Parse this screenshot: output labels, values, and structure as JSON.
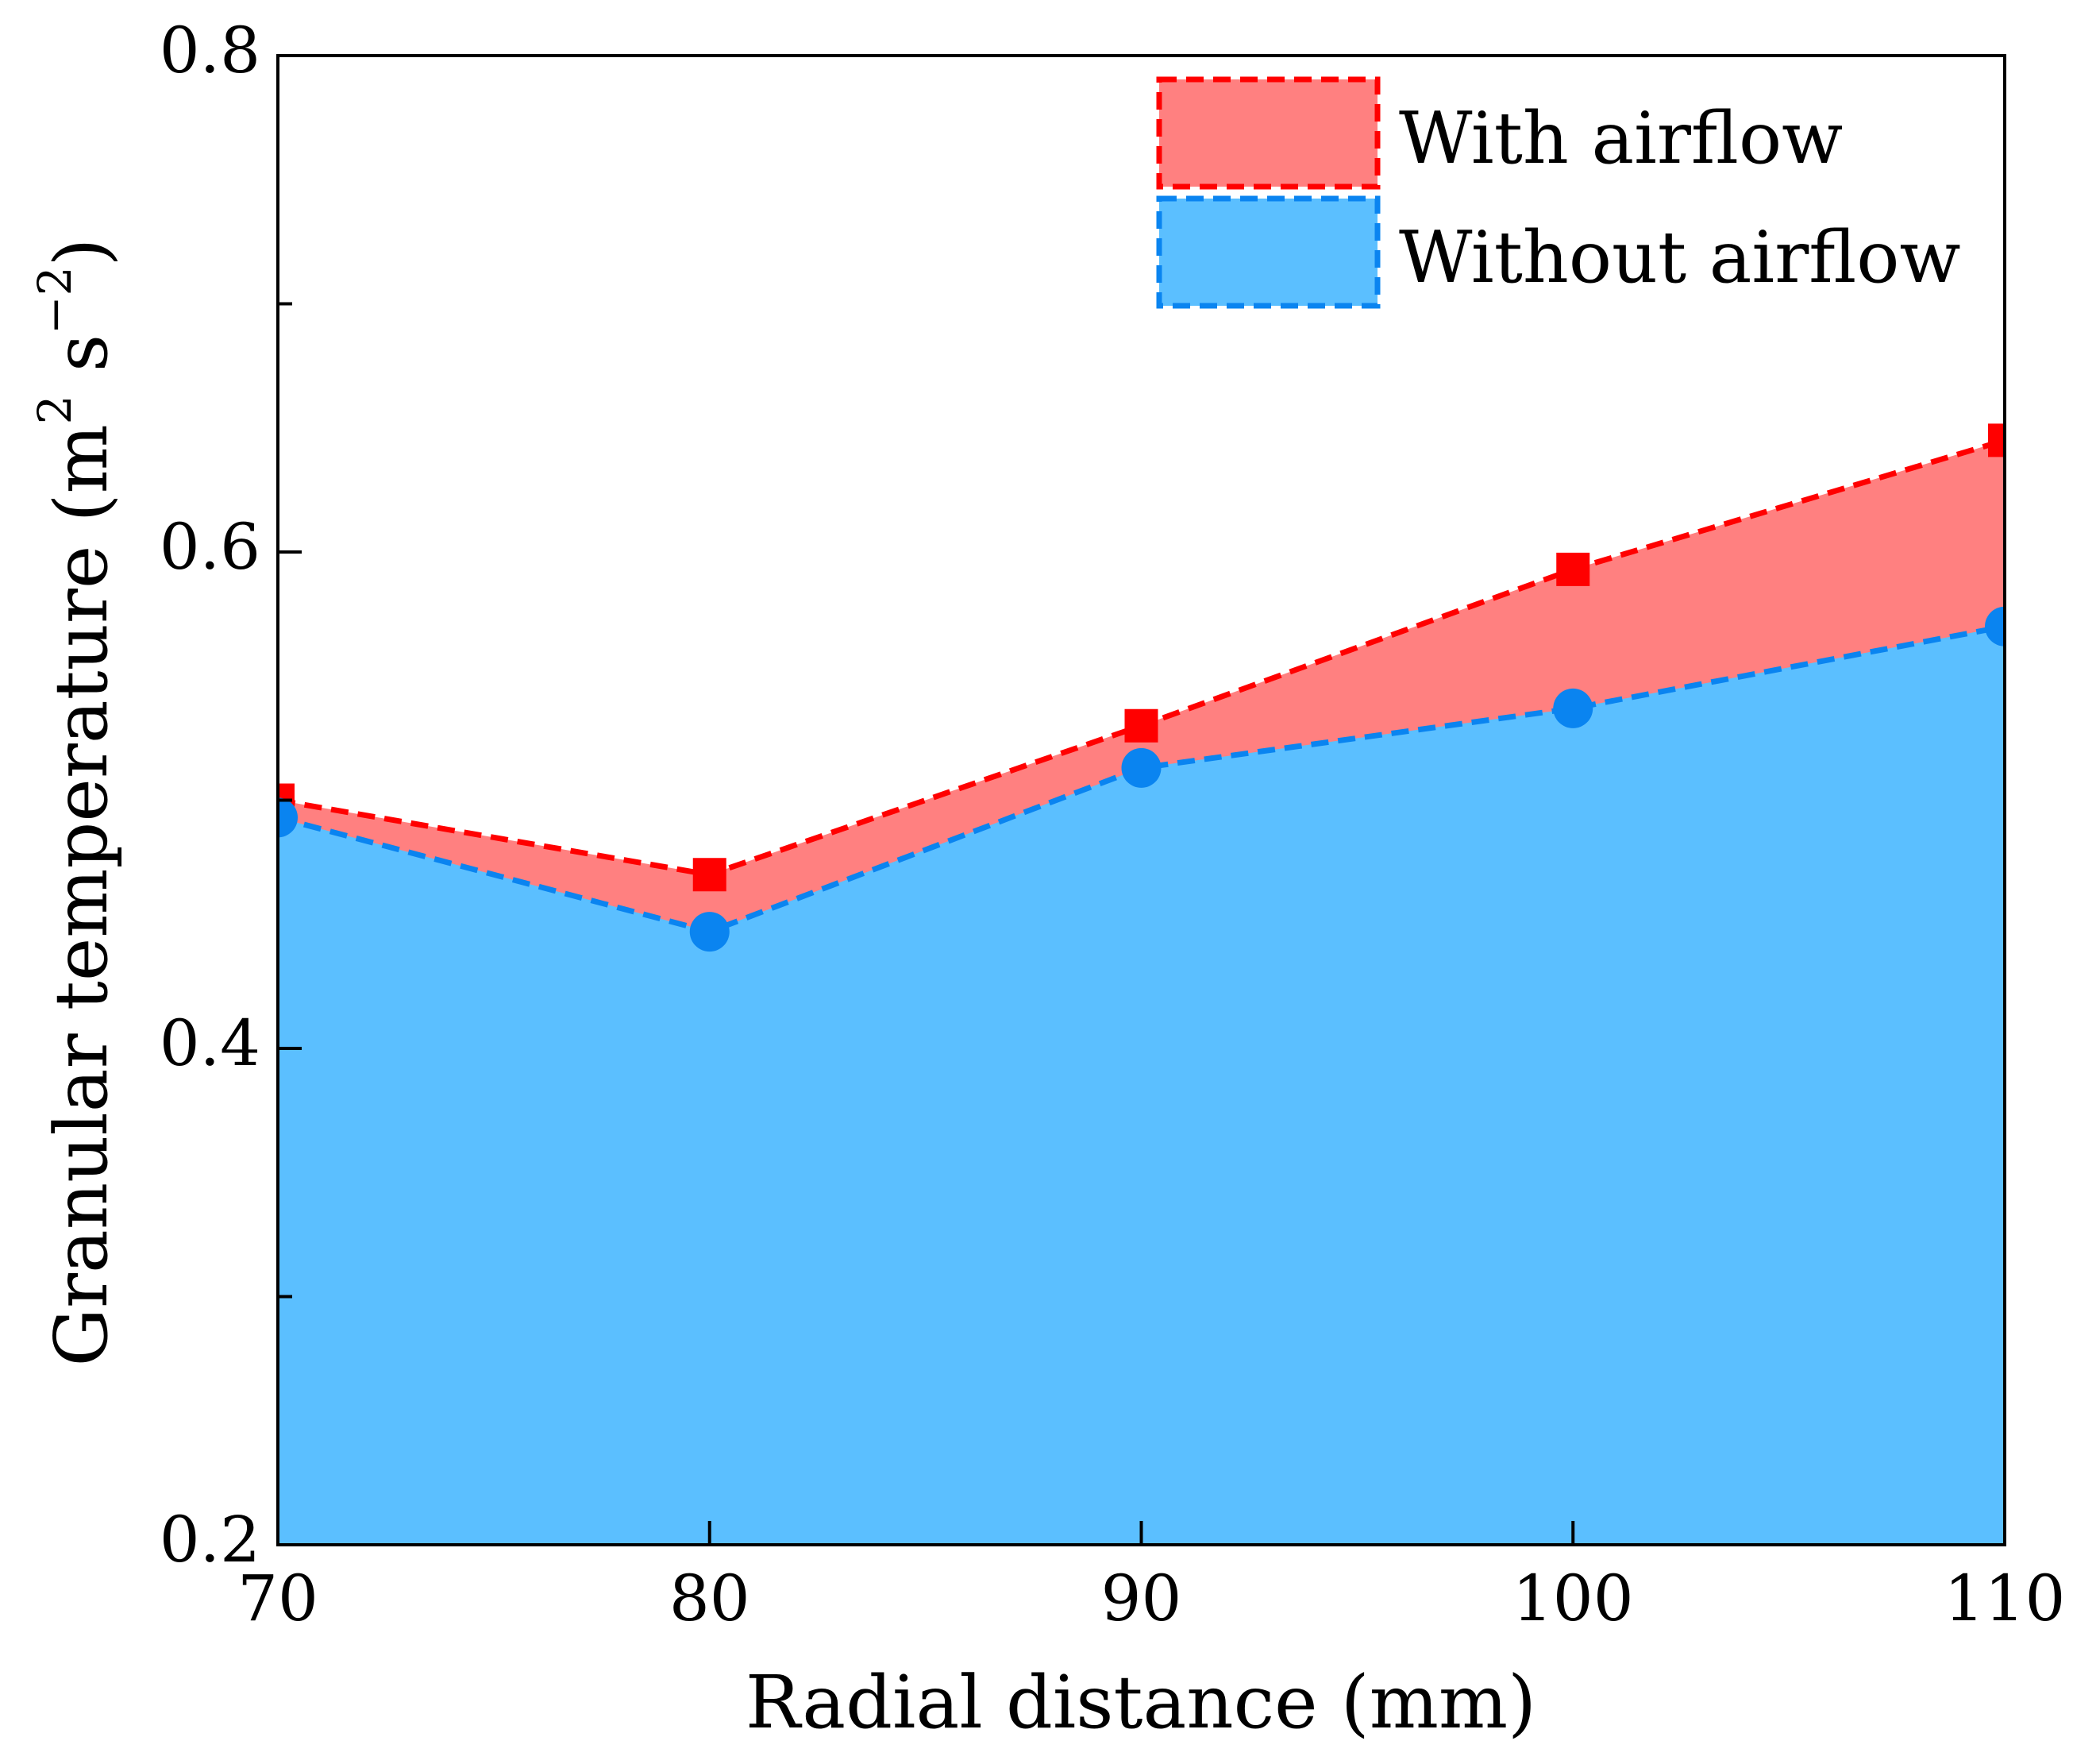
{
  "chart_data": {
    "type": "area",
    "title": "",
    "xlabel": "Radial distance (mm)",
    "ylabel_parts": {
      "main": "Granular temperature (m",
      "sup1": "2",
      "mid": " s",
      "sup2": "−2",
      "end": ")"
    },
    "x": [
      70,
      80,
      90,
      100,
      110
    ],
    "xlim": [
      70,
      110
    ],
    "ylim": [
      0.2,
      0.8
    ],
    "xticks": [
      70,
      80,
      90,
      100,
      110
    ],
    "xtick_labels": [
      "70",
      "80",
      "90",
      "100",
      "110"
    ],
    "yticks": [
      0.2,
      0.4,
      0.6,
      0.8
    ],
    "ytick_labels": [
      "0.2",
      "0.4",
      "0.6",
      "0.8"
    ],
    "yminor_ticks": [
      0.3,
      0.5,
      0.7
    ],
    "legend_position": "top-right",
    "series": [
      {
        "name": "With airflow",
        "values": [
          0.5,
          0.47,
          0.53,
          0.593,
          0.645
        ],
        "marker": "square",
        "fill_color": "#ff8080",
        "line_color": "#ff0000"
      },
      {
        "name": "Without airflow",
        "values": [
          0.493,
          0.447,
          0.513,
          0.537,
          0.57
        ],
        "marker": "circle",
        "fill_color": "#5bbfff",
        "line_color": "#0a84f0"
      }
    ]
  }
}
